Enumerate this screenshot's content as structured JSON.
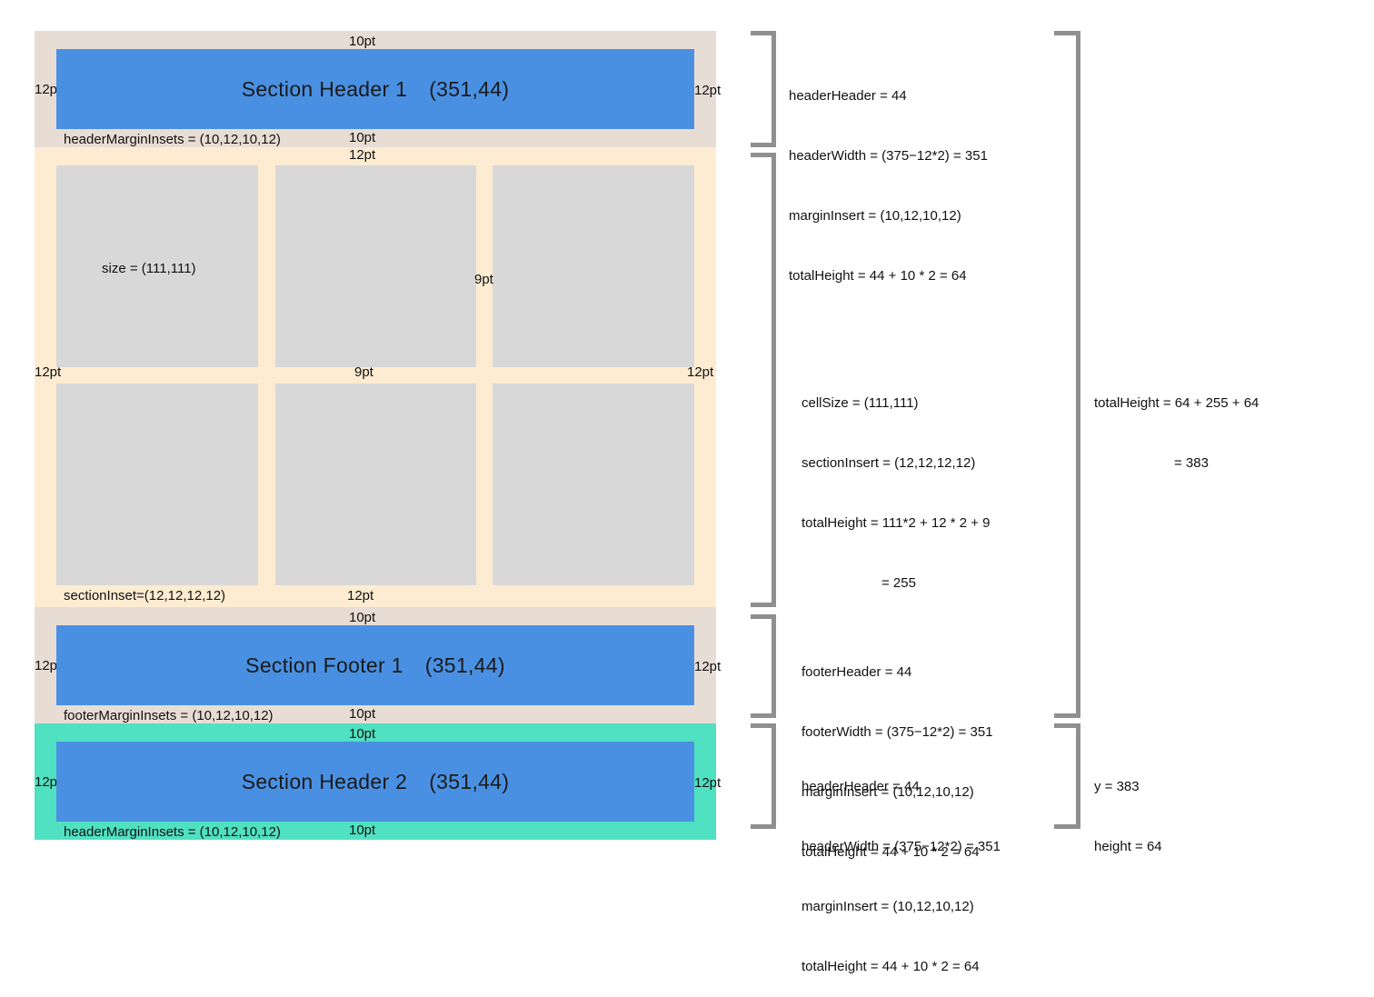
{
  "colors": {
    "margin_region": "#e8ddd4",
    "section_region": "#fdecd2",
    "highlight_region": "#4fe1c1",
    "blue_bar": "#4a90e2",
    "cell": "#d8d8d8",
    "bracket": "#8f8f8f"
  },
  "header1": {
    "title": "Section Header 1",
    "size": "(351,44)",
    "top_label": "10pt",
    "left_label": "12pt",
    "right_label": "12pt",
    "bottom_label": "10pt",
    "insets_label": "headerMarginInsets = (10,12,10,12)"
  },
  "section": {
    "top_label": "12pt",
    "cell_size_label": "size = (111,111)",
    "column_gap_label": "9pt",
    "row_gap_label": "9pt",
    "left_label": "12pt",
    "right_label": "12pt",
    "bottom_label": "12pt",
    "inset_label": "sectionInset=(12,12,12,12)"
  },
  "footer1": {
    "title": "Section Footer 1",
    "size": "(351,44)",
    "top_label": "10pt",
    "left_label": "12pt",
    "right_label": "12pt",
    "bottom_label": "10pt",
    "insets_label": "footerMarginInsets = (10,12,10,12)"
  },
  "header2": {
    "title": "Section Header 2",
    "size": "(351,44)",
    "top_label": "10pt",
    "left_label": "12pt",
    "right_label": "12pt",
    "bottom_label": "10pt",
    "insets_label": "headerMarginInsets = (10,12,10,12)"
  },
  "annotations": {
    "header1": [
      "headerHeader = 44",
      "headerWidth = (375−12*2) = 351",
      "marginInsert = (10,12,10,12)",
      "totalHeight = 44 + 10 * 2 = 64"
    ],
    "section": [
      "cellSize = (111,111)",
      "sectionInsert = (12,12,12,12)",
      "totalHeight = 111*2 + 12 * 2 + 9",
      "= 255"
    ],
    "footer1": [
      "footerHeader = 44",
      "footerWidth = (375−12*2) = 351",
      "marginInsert = (10,12,10,12)",
      "totalHeight = 44 + 10 * 2 = 64"
    ],
    "header2": [
      "headerHeader = 44",
      "headerWidth = (375−12*2) = 351",
      "marginInsert = (10,12,10,12)",
      "totalHeight = 44 + 10 * 2 = 64"
    ],
    "total": [
      "totalHeight = 64 + 255 + 64",
      "= 383"
    ],
    "position": [
      "y = 383",
      "height = 64"
    ]
  }
}
